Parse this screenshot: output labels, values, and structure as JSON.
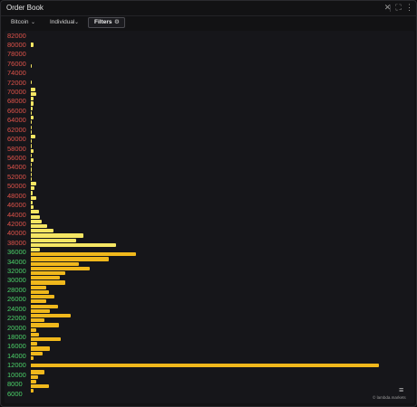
{
  "window": {
    "title": "Order Book",
    "close_icon": "✕",
    "expand_icon": "⛶",
    "more_icon": "⋮"
  },
  "toolbar": {
    "asset_dropdown": "Bitcoin",
    "account_dropdown": "Individual",
    "filters_button": "Filters",
    "chevron": "⌄",
    "filters_icon": "⚙"
  },
  "colors": {
    "sell_label": "#e0534a",
    "buy_label": "#4cd36a",
    "ask_bar": "#f5e663",
    "bid_bar": "#f0b81c"
  },
  "chart_data": {
    "type": "bar",
    "orientation": "horizontal",
    "yrange": [
      6000,
      82000
    ],
    "price_levels": [
      "82000",
      "80000",
      "78000",
      "76000",
      "74000",
      "72000",
      "70000",
      "68000",
      "66000",
      "64000",
      "62000",
      "60000",
      "58000",
      "56000",
      "54000",
      "52000",
      "50000",
      "48000",
      "46000",
      "44000",
      "42000",
      "40000",
      "38000",
      "36000",
      "34000",
      "32000",
      "30000",
      "28000",
      "26000",
      "24000",
      "22000",
      "20000",
      "18000",
      "16000",
      "14000",
      "12000",
      "10000",
      "8000",
      "6000"
    ],
    "label_side": [
      "sell",
      "sell",
      "sell",
      "sell",
      "sell",
      "sell",
      "sell",
      "sell",
      "sell",
      "sell",
      "sell",
      "sell",
      "sell",
      "sell",
      "sell",
      "sell",
      "sell",
      "sell",
      "sell",
      "sell",
      "sell",
      "sell",
      "sell",
      "buy",
      "buy",
      "buy",
      "buy",
      "buy",
      "buy",
      "buy",
      "buy",
      "buy",
      "buy",
      "buy",
      "buy",
      "buy",
      "buy",
      "buy",
      "buy"
    ],
    "max_value": 383,
    "asks": [
      {
        "price": 80000,
        "value": 3
      },
      {
        "price": 75500,
        "value": 1
      },
      {
        "price": 72000,
        "value": 1
      },
      {
        "price": 70500,
        "value": 5
      },
      {
        "price": 69500,
        "value": 6
      },
      {
        "price": 68500,
        "value": 3
      },
      {
        "price": 67500,
        "value": 3
      },
      {
        "price": 66500,
        "value": 2
      },
      {
        "price": 65500,
        "value": 1
      },
      {
        "price": 64500,
        "value": 3
      },
      {
        "price": 63500,
        "value": 1
      },
      {
        "price": 62500,
        "value": 1
      },
      {
        "price": 61500,
        "value": 1
      },
      {
        "price": 60500,
        "value": 5
      },
      {
        "price": 59500,
        "value": 1
      },
      {
        "price": 58500,
        "value": 1
      },
      {
        "price": 57500,
        "value": 3
      },
      {
        "price": 56500,
        "value": 1
      },
      {
        "price": 55500,
        "value": 3
      },
      {
        "price": 54500,
        "value": 1
      },
      {
        "price": 53500,
        "value": 1
      },
      {
        "price": 52500,
        "value": 1
      },
      {
        "price": 51500,
        "value": 1
      },
      {
        "price": 50500,
        "value": 6
      },
      {
        "price": 49500,
        "value": 4
      },
      {
        "price": 48500,
        "value": 2
      },
      {
        "price": 47500,
        "value": 6
      },
      {
        "price": 46500,
        "value": 2
      },
      {
        "price": 45500,
        "value": 3
      },
      {
        "price": 44500,
        "value": 9
      },
      {
        "price": 43500,
        "value": 10
      },
      {
        "price": 42500,
        "value": 12
      },
      {
        "price": 41500,
        "value": 18
      },
      {
        "price": 40500,
        "value": 25
      },
      {
        "price": 39500,
        "value": 58
      },
      {
        "price": 38500,
        "value": 50
      },
      {
        "price": 37500,
        "value": 94
      },
      {
        "price": 36500,
        "value": 10
      }
    ],
    "bids": [
      {
        "price": 35500,
        "value": 116
      },
      {
        "price": 34500,
        "value": 86
      },
      {
        "price": 33500,
        "value": 53
      },
      {
        "price": 32500,
        "value": 65
      },
      {
        "price": 31500,
        "value": 38
      },
      {
        "price": 30500,
        "value": 32
      },
      {
        "price": 29500,
        "value": 38
      },
      {
        "price": 28500,
        "value": 17
      },
      {
        "price": 27500,
        "value": 20
      },
      {
        "price": 26500,
        "value": 26
      },
      {
        "price": 25500,
        "value": 17
      },
      {
        "price": 24500,
        "value": 30
      },
      {
        "price": 23500,
        "value": 21
      },
      {
        "price": 22500,
        "value": 44
      },
      {
        "price": 21500,
        "value": 15
      },
      {
        "price": 20500,
        "value": 31
      },
      {
        "price": 19500,
        "value": 6
      },
      {
        "price": 18500,
        "value": 9
      },
      {
        "price": 17500,
        "value": 33
      },
      {
        "price": 16500,
        "value": 7
      },
      {
        "price": 15500,
        "value": 21
      },
      {
        "price": 14500,
        "value": 13
      },
      {
        "price": 13500,
        "value": 3
      },
      {
        "price": 12000,
        "value": 383
      },
      {
        "price": 10500,
        "value": 15
      },
      {
        "price": 9500,
        "value": 8
      },
      {
        "price": 8500,
        "value": 6
      },
      {
        "price": 7500,
        "value": 20
      },
      {
        "price": 6500,
        "value": 3
      }
    ]
  },
  "footer": {
    "attribution": "© lambda.markets",
    "menu_icon": "≡"
  }
}
